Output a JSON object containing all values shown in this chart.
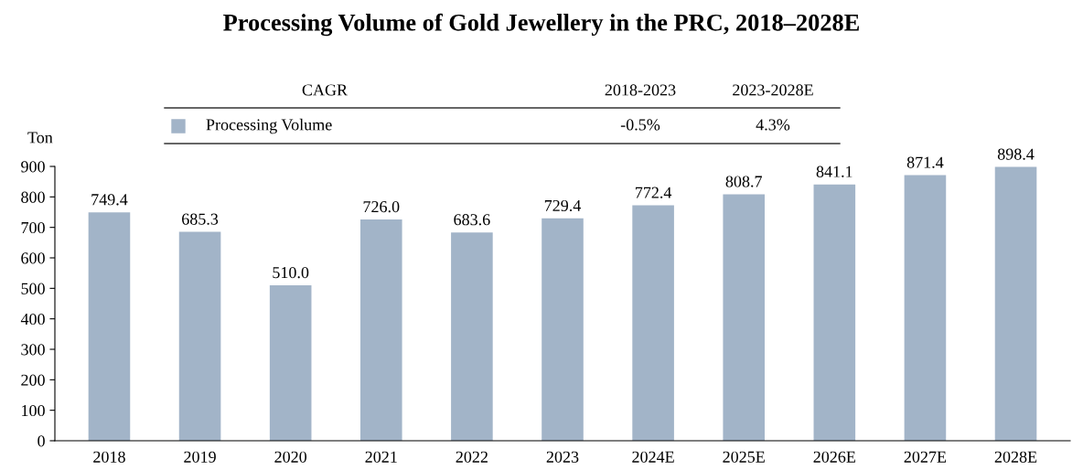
{
  "chart_data": {
    "type": "bar",
    "title": "Processing Volume of Gold Jewellery in the PRC, 2018–2028E",
    "ylabel": "Ton",
    "categories": [
      "2018",
      "2019",
      "2020",
      "2021",
      "2022",
      "2023",
      "2024E",
      "2025E",
      "2026E",
      "2027E",
      "2028E"
    ],
    "series": [
      {
        "name": "Processing Volume",
        "color": "#a2b4c8",
        "values": [
          749.4,
          685.3,
          510.0,
          726.0,
          683.6,
          729.4,
          772.4,
          808.7,
          841.1,
          871.4,
          898.4
        ]
      }
    ],
    "value_labels": [
      "749.4",
      "685.3",
      "510.0",
      "726.0",
      "683.6",
      "729.4",
      "772.4",
      "808.7",
      "841.1",
      "871.4",
      "898.4"
    ],
    "ylim": [
      0,
      900
    ],
    "yticks": [
      0,
      100,
      200,
      300,
      400,
      500,
      600,
      700,
      800,
      900
    ],
    "annotations": [
      "CAGR",
      "2018-2023",
      "2023-2028E",
      "-0.5%",
      "4.3%"
    ],
    "legend": "top",
    "grid": false
  }
}
